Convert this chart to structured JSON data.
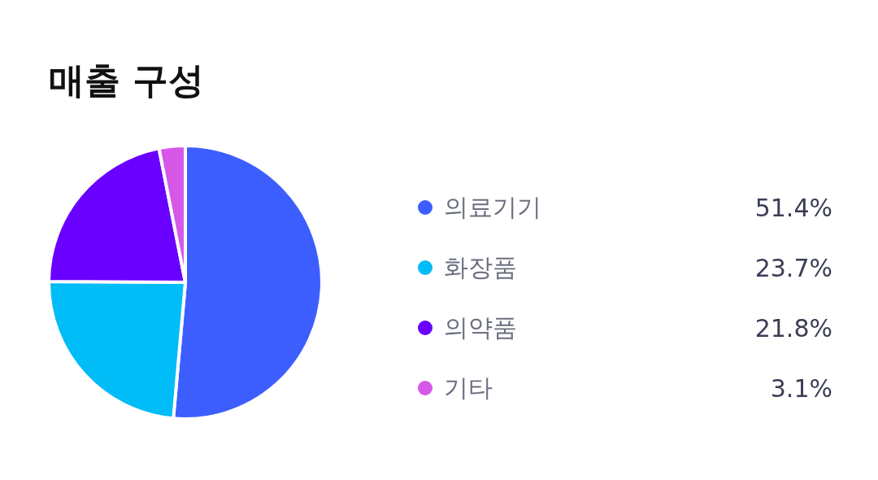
{
  "chart_data": {
    "type": "pie",
    "title": "매출 구성",
    "categories": [
      "의료기기",
      "화장품",
      "의약품",
      "기타"
    ],
    "values": [
      51.4,
      23.7,
      21.8,
      3.1
    ],
    "colors": [
      "#3d5eff",
      "#00bcf7",
      "#6a00ff",
      "#d657e8"
    ],
    "value_labels": [
      "51.4%",
      "23.7%",
      "21.8%",
      "3.1%"
    ],
    "legend": "right"
  }
}
